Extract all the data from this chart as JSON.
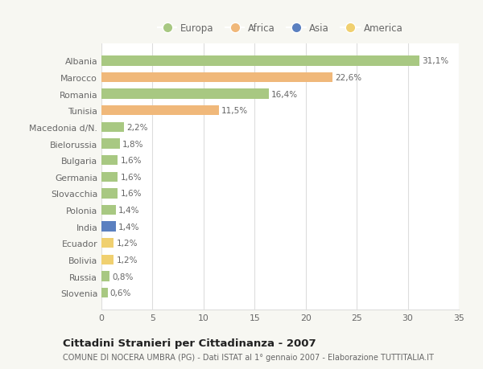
{
  "countries": [
    "Albania",
    "Marocco",
    "Romania",
    "Tunisia",
    "Macedonia d/N.",
    "Bielorussia",
    "Bulgaria",
    "Germania",
    "Slovacchia",
    "Polonia",
    "India",
    "Ecuador",
    "Bolivia",
    "Russia",
    "Slovenia"
  ],
  "values": [
    31.1,
    22.6,
    16.4,
    11.5,
    2.2,
    1.8,
    1.6,
    1.6,
    1.6,
    1.4,
    1.4,
    1.2,
    1.2,
    0.8,
    0.6
  ],
  "labels": [
    "31,1%",
    "22,6%",
    "16,4%",
    "11,5%",
    "2,2%",
    "1,8%",
    "1,6%",
    "1,6%",
    "1,6%",
    "1,4%",
    "1,4%",
    "1,2%",
    "1,2%",
    "0,8%",
    "0,6%"
  ],
  "continents": [
    "Europa",
    "Africa",
    "Europa",
    "Africa",
    "Europa",
    "Europa",
    "Europa",
    "Europa",
    "Europa",
    "Europa",
    "Asia",
    "America",
    "America",
    "Europa",
    "Europa"
  ],
  "colors": {
    "Europa": "#a8c882",
    "Africa": "#f0b87a",
    "Asia": "#5b80c0",
    "America": "#f0d070"
  },
  "background_color": "#f7f7f2",
  "plot_bg_color": "#ffffff",
  "title": "Cittadini Stranieri per Cittadinanza - 2007",
  "subtitle": "COMUNE DI NOCERA UMBRA (PG) - Dati ISTAT al 1° gennaio 2007 - Elaborazione TUTTITALIA.IT",
  "xlim": [
    0,
    35
  ],
  "xticks": [
    0,
    5,
    10,
    15,
    20,
    25,
    30,
    35
  ],
  "grid_color": "#dddddd",
  "bar_height": 0.6,
  "label_fontsize": 7.5,
  "tick_fontsize": 7.8,
  "title_fontsize": 9.5,
  "subtitle_fontsize": 7.0,
  "legend_fontsize": 8.5
}
